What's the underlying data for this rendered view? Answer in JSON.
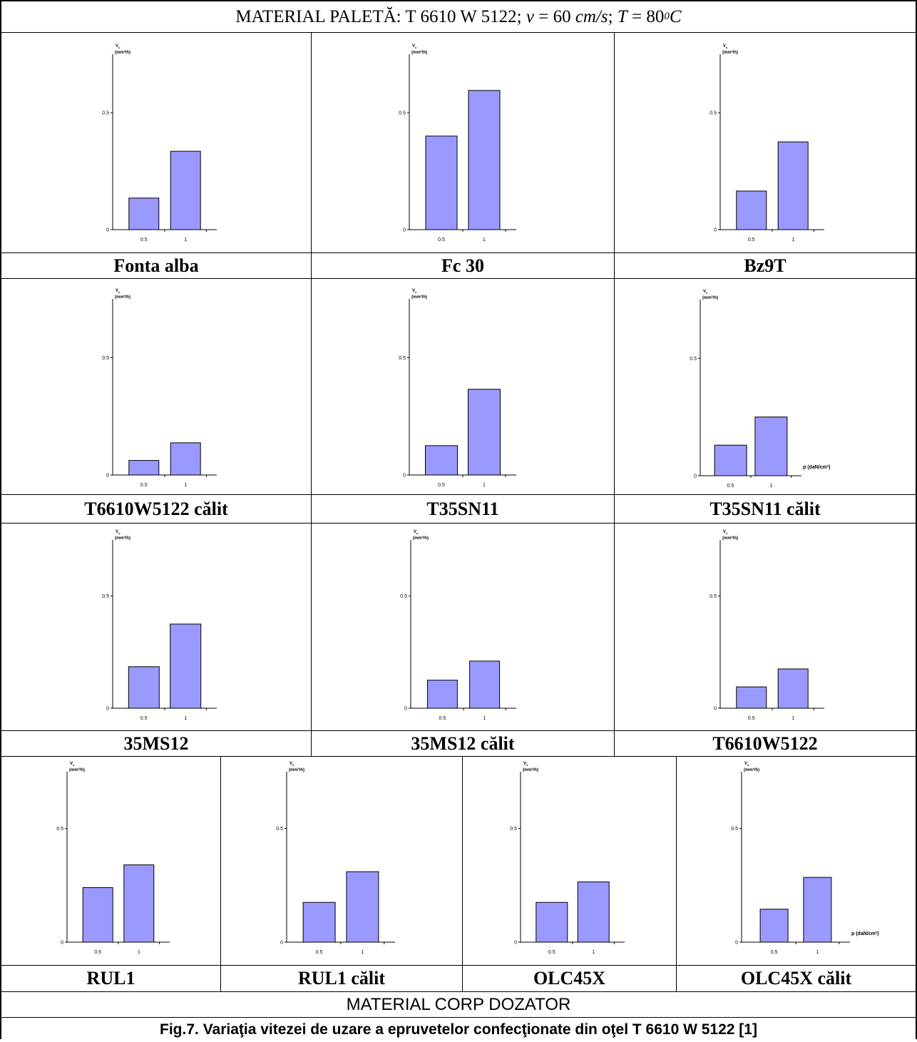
{
  "header": {
    "title_prefix": "MATERIAL PALETĂ: T 6610 W 5122;",
    "title_v": "v",
    "title_v_value": " = 60 ",
    "title_v_unit": "cm/s",
    "title_T": "T",
    "title_T_value": " = 80",
    "title_T_sup": "0",
    "title_T_unit": "C"
  },
  "footer": {
    "material_corp": "MATERIAL CORP DOZATOR",
    "caption": "Fig.7. Variaţia vitezei de uzare a epruvetelor confecţionate din oţel T 6610 W 5122 [1]"
  },
  "colors": {
    "bar_fill": "#9999FF",
    "bar_stroke": "#000000",
    "grid": "none"
  },
  "axis_text": {
    "ylabel_main": "V",
    "ylabel_sub": "u",
    "ylabel_unit": "(mm³/h)",
    "xlabel": "p (daN/cm²)"
  },
  "chart_data": [
    {
      "type": "bar",
      "label": "Fonta alba",
      "categories": [
        "0.5",
        "1"
      ],
      "yticks": [
        "0",
        "0.5"
      ],
      "ylim": [
        0,
        0.75
      ],
      "values": [
        0.135,
        0.335
      ],
      "xlabel": "",
      "ylabel": "Vu (mm³/h)"
    },
    {
      "type": "bar",
      "label": "Fc 30",
      "categories": [
        "0.5",
        "1"
      ],
      "yticks": [
        "0",
        "0.5"
      ],
      "ylim": [
        0,
        0.75
      ],
      "values": [
        0.4,
        0.595
      ],
      "xlabel": "",
      "ylabel": "Vu (mm³/h)"
    },
    {
      "type": "bar",
      "label": "Bz9T",
      "categories": [
        "0.5",
        "1"
      ],
      "yticks": [
        "0",
        "0.5"
      ],
      "ylim": [
        0,
        0.75
      ],
      "values": [
        0.165,
        0.375
      ],
      "xlabel": "",
      "ylabel": "Vu (mm³/h)"
    },
    {
      "type": "bar",
      "label": "T6610W5122 călit",
      "categories": [
        "0.5",
        "1"
      ],
      "yticks": [
        "0",
        "0.5"
      ],
      "ylim": [
        0,
        0.75
      ],
      "values": [
        0.062,
        0.137
      ],
      "xlabel": "",
      "ylabel": "Vu (mm³/h)"
    },
    {
      "type": "bar",
      "label": "T35SN11",
      "categories": [
        "0.5",
        "1"
      ],
      "yticks": [
        "0",
        "0.5"
      ],
      "ylim": [
        0,
        0.75
      ],
      "values": [
        0.125,
        0.365
      ],
      "xlabel": "",
      "ylabel": "Vu (mm³/h)"
    },
    {
      "type": "bar",
      "label": "T35SN11 călit",
      "categories": [
        "0.5",
        "1"
      ],
      "yticks": [
        "0",
        "0.5"
      ],
      "ylim": [
        0,
        0.75
      ],
      "values": [
        0.13,
        0.25
      ],
      "xlabel": "p (daN/cm²)",
      "ylabel": "Vu (mm³/h)"
    },
    {
      "type": "bar",
      "label": "35MS12",
      "categories": [
        "0.5",
        "1"
      ],
      "yticks": [
        "0",
        "0.5"
      ],
      "ylim": [
        0,
        0.75
      ],
      "values": [
        0.185,
        0.375
      ],
      "xlabel": "",
      "ylabel": "Vu (mm³/h)"
    },
    {
      "type": "bar",
      "label": "35MS12 călit",
      "categories": [
        "0.5",
        "1"
      ],
      "yticks": [
        "0",
        "0.5"
      ],
      "ylim": [
        0,
        0.75
      ],
      "values": [
        0.125,
        0.21
      ],
      "xlabel": "",
      "ylabel": "Vu (mm³/h)"
    },
    {
      "type": "bar",
      "label": "T6610W5122",
      "categories": [
        "0.5",
        "1"
      ],
      "yticks": [
        "0",
        "0.5"
      ],
      "ylim": [
        0,
        0.75
      ],
      "values": [
        0.095,
        0.175
      ],
      "xlabel": "",
      "ylabel": "Vu (mm³/h)"
    },
    {
      "type": "bar",
      "label": "RUL1",
      "categories": [
        "0.5",
        "1"
      ],
      "yticks": [
        "0",
        "0.5"
      ],
      "ylim": [
        0,
        0.75
      ],
      "values": [
        0.24,
        0.34
      ],
      "xlabel": "",
      "ylabel": "Vu (mm³/h)"
    },
    {
      "type": "bar",
      "label": "RUL1 călit",
      "categories": [
        "0.5",
        "1"
      ],
      "yticks": [
        "0",
        "0.5"
      ],
      "ylim": [
        0,
        0.75
      ],
      "values": [
        0.175,
        0.31
      ],
      "xlabel": "",
      "ylabel": "Vu (mm³/h)"
    },
    {
      "type": "bar",
      "label": "OLC45X",
      "categories": [
        "0.5",
        "1"
      ],
      "yticks": [
        "0",
        "0.5"
      ],
      "ylim": [
        0,
        0.75
      ],
      "values": [
        0.175,
        0.265
      ],
      "xlabel": "",
      "ylabel": "Vu (mm³/h)"
    },
    {
      "type": "bar",
      "label": "OLC45X călit",
      "categories": [
        "0.5",
        "1"
      ],
      "yticks": [
        "0",
        "0.5"
      ],
      "ylim": [
        0,
        0.75
      ],
      "values": [
        0.145,
        0.285
      ],
      "xlabel": "p (daN/cm²)",
      "ylabel": "Vu (mm³/h)"
    }
  ]
}
